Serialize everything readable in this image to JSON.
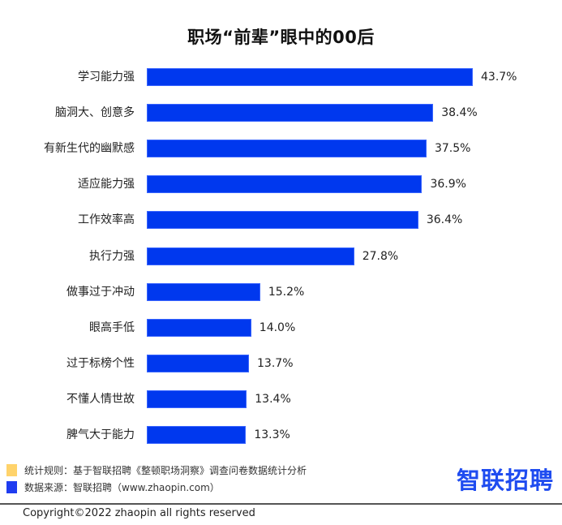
{
  "title": "职场“前辈”眼中的00后",
  "colors": {
    "bar": "#0038ee",
    "legend_rule": "#ffd36b",
    "legend_source": "#1f3cf0",
    "logo": "#1f4cf0"
  },
  "chart_data": {
    "type": "bar",
    "orientation": "horizontal",
    "title": "职场“前辈”眼中的00后",
    "xlabel": "",
    "ylabel": "",
    "categories": [
      "学习能力强",
      "脑洞大、创意多",
      "有新生代的幽默感",
      "适应能力强",
      "工作效率高",
      "执行力强",
      "做事过于冲动",
      "眼高手低",
      "过于标榜个性",
      "不懂人情世故",
      "脾气大于能力"
    ],
    "values": [
      43.7,
      38.4,
      37.5,
      36.9,
      36.4,
      27.8,
      15.2,
      14.0,
      13.7,
      13.4,
      13.3
    ],
    "value_labels": [
      "43.7%",
      "38.4%",
      "37.5%",
      "36.9%",
      "36.4%",
      "27.8%",
      "15.2%",
      "14.0%",
      "13.7%",
      "13.4%",
      "13.3%"
    ],
    "unit": "%",
    "grid": false,
    "legend": false
  },
  "footer": {
    "legend": [
      {
        "label": "统计规则：基于智联招聘《整顿职场洞察》调查问卷数据统计分析",
        "color": "#ffd36b"
      },
      {
        "label": "数据来源：智联招聘（www.zhaopin.com）",
        "color": "#1f3cf0"
      }
    ],
    "logo": "智联招聘",
    "copyright": "Copyright©2022 zhaopin all rights reserved"
  }
}
